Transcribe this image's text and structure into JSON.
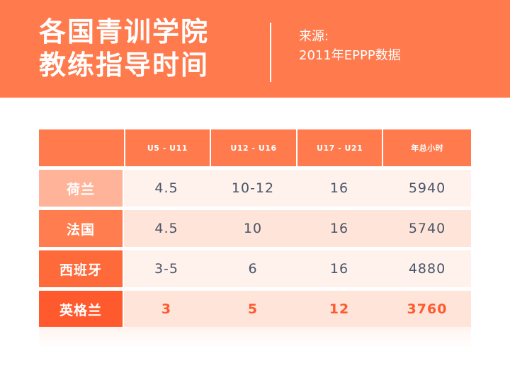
{
  "header": {
    "title_line1": "各国青训学院",
    "title_line2": "教练指导时间",
    "source_label": "来源:",
    "source_value": "2011年EPPP数据"
  },
  "table": {
    "columns": [
      "",
      "U5 - U11",
      "U12 - U16",
      "U17 - U21",
      "年总小时"
    ],
    "rows": [
      {
        "country": "荷兰",
        "u5_u11": "4.5",
        "u12_u16": "10-12",
        "u17_u21": "16",
        "total": "5940"
      },
      {
        "country": "法国",
        "u5_u11": "4.5",
        "u12_u16": "10",
        "u17_u21": "16",
        "total": "5740"
      },
      {
        "country": "西班牙",
        "u5_u11": "3-5",
        "u12_u16": "6",
        "u17_u21": "16",
        "total": "4880"
      },
      {
        "country": "英格兰",
        "u5_u11": "3",
        "u12_u16": "5",
        "u17_u21": "12",
        "total": "3760"
      }
    ]
  },
  "colors": {
    "accent": "#ff7a4d",
    "highlight": "#ff5a2e",
    "text": "#4a5568"
  }
}
